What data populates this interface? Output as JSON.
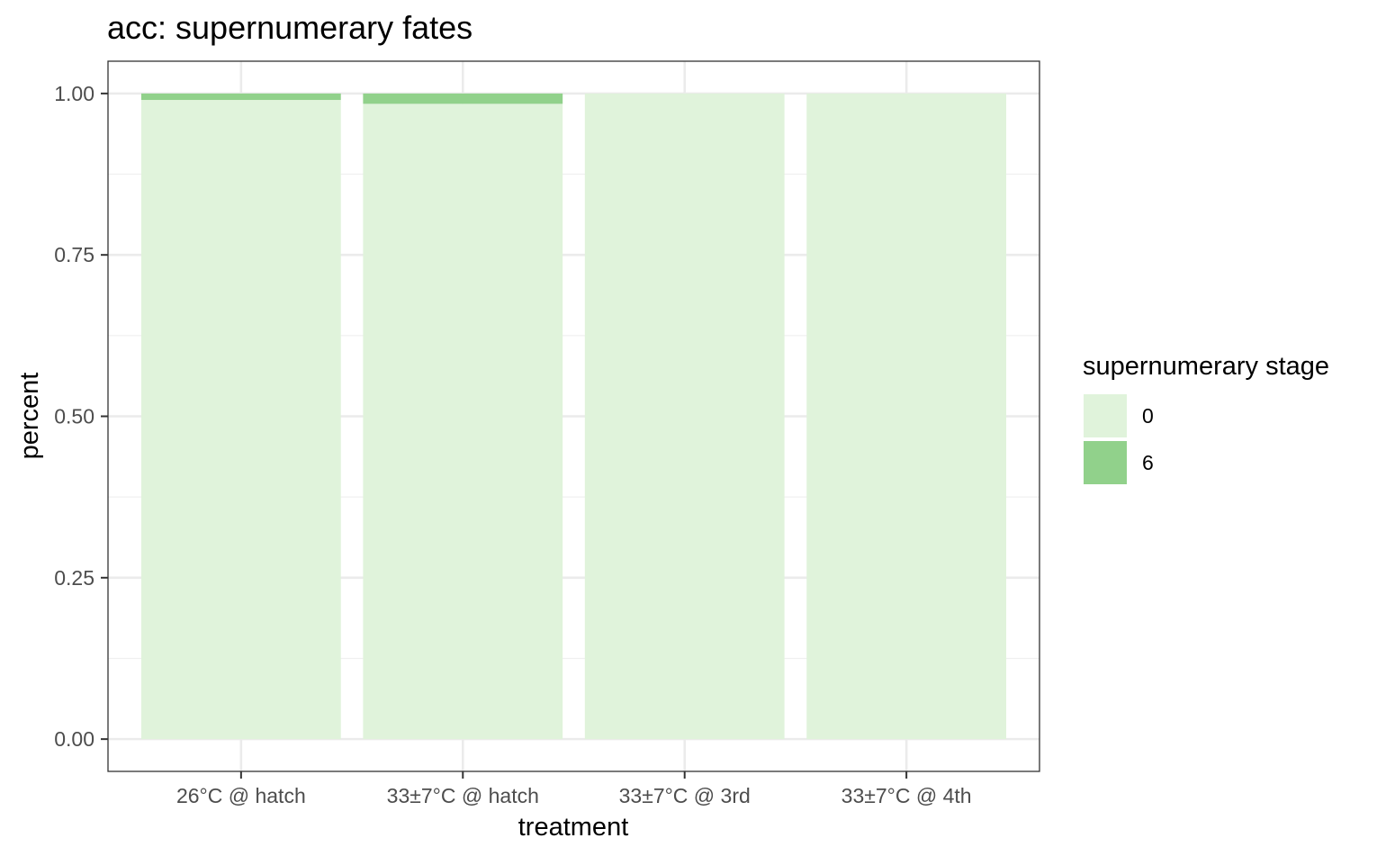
{
  "chart_data": {
    "type": "bar",
    "stacked": true,
    "title": "acc: supernumerary fates",
    "xlabel": "treatment",
    "ylabel": "percent",
    "ylim": [
      -0.05,
      1.05
    ],
    "y_ticks": [
      0.0,
      0.25,
      0.5,
      0.75,
      1.0
    ],
    "y_tick_labels": [
      "0.00",
      "0.25",
      "0.50",
      "0.75",
      "1.00"
    ],
    "categories": [
      "26°C @ hatch",
      "33±7°C @ hatch",
      "33±7°C @ 3rd",
      "33±7°C @ 4th"
    ],
    "series": [
      {
        "name": "0",
        "color": "#e0f3db",
        "values": [
          0.99,
          0.984,
          1.0,
          1.0
        ]
      },
      {
        "name": "6",
        "color": "#91d18b",
        "values": [
          0.01,
          0.016,
          0.0,
          0.0
        ]
      }
    ],
    "legend": {
      "title": "supernumerary stage",
      "position": "right"
    },
    "grid": true
  }
}
